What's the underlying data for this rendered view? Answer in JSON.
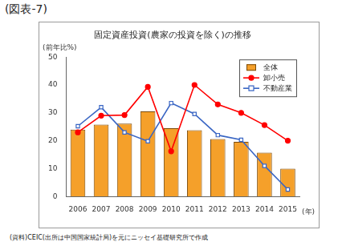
{
  "chart_data": {
    "type": "bar",
    "figure_label": "(図表-7)",
    "title": "固定資産投資(農家の投資を除く)の推移",
    "y_label": "(前年比%)",
    "x_label": "(年)",
    "source": "(資料)CEIC(出所は中国国家統計局)を元にニッセイ基礎研究所で作成",
    "categories": [
      "2006",
      "2007",
      "2008",
      "2009",
      "2010",
      "2011",
      "2012",
      "2013",
      "2014",
      "2015"
    ],
    "series": [
      {
        "name": "全体",
        "color": "#f5a02a",
        "values": [
          24.0,
          25.8,
          26.1,
          30.5,
          24.5,
          23.8,
          20.6,
          19.6,
          15.7,
          10.0
        ]
      },
      {
        "name": "卸小売",
        "type": "line",
        "color": "#ff0000",
        "marker": "circle",
        "values": [
          23.0,
          29.0,
          29.2,
          39.3,
          16.2,
          40.0,
          33.0,
          30.0,
          25.6,
          20.0
        ]
      },
      {
        "name": "不動産業",
        "type": "line",
        "color": "#3a66c4",
        "marker": "square",
        "values": [
          25.2,
          32.0,
          23.0,
          19.8,
          33.5,
          29.6,
          22.0,
          20.3,
          11.0,
          2.5
        ]
      }
    ],
    "ylim": [
      0,
      50
    ],
    "yticks": [
      0,
      10,
      20,
      30,
      40,
      50
    ],
    "grid": false,
    "legend": "upper right"
  }
}
